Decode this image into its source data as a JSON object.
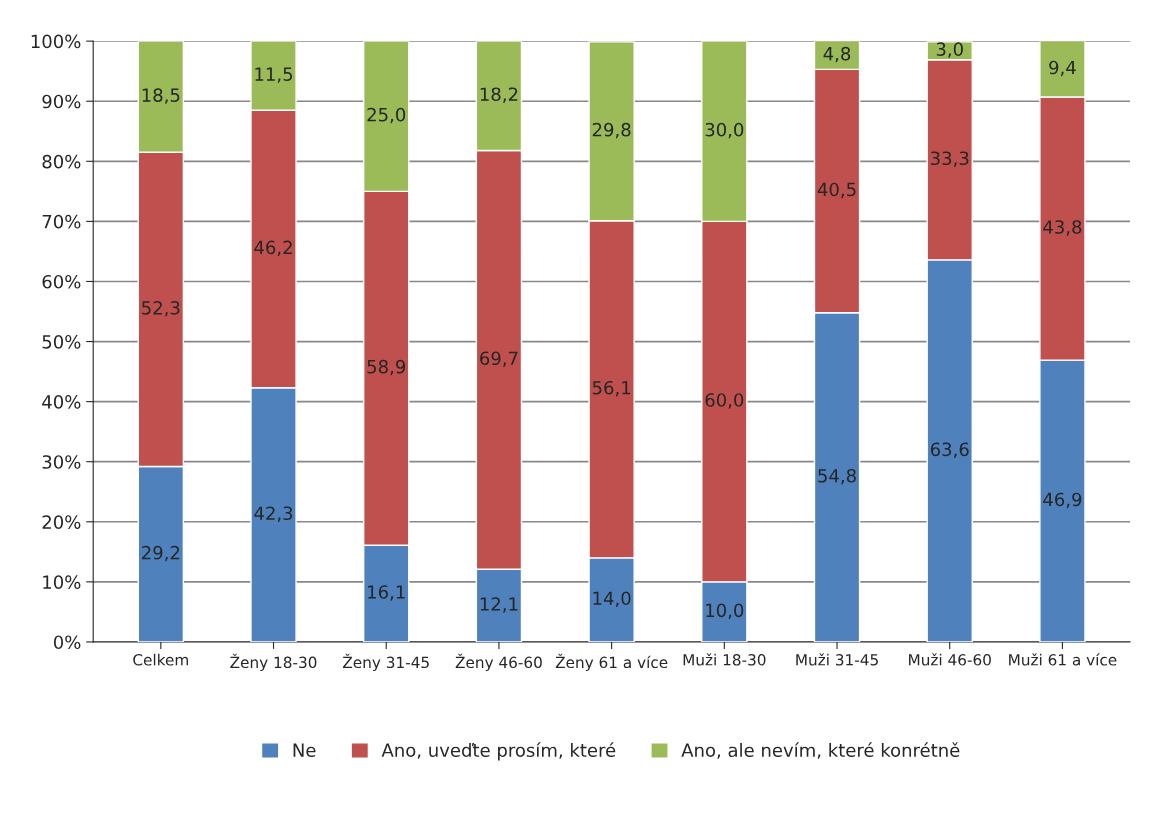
{
  "chart_data": {
    "type": "bar",
    "stacked": true,
    "categories": [
      "Celkem",
      "Ženy 18-30",
      "Ženy 31-45",
      "Ženy 46-60",
      "Ženy 61 a více",
      "Muži 18-30",
      "Muži 31-45",
      "Muži 46-60",
      "Muži 61 a více"
    ],
    "series": [
      {
        "name": "Ne",
        "color": "#4f81bd",
        "values": [
          29.2,
          42.3,
          16.1,
          12.1,
          14.0,
          10.0,
          54.8,
          63.6,
          46.9
        ],
        "value_labels": [
          "29,2",
          "42,3",
          "16,1",
          "12,1",
          "14,0",
          "10,0",
          "54,8",
          "63,6",
          "46,9"
        ]
      },
      {
        "name": "Ano, uveďte prosím, které",
        "color": "#c0504d",
        "values": [
          52.3,
          46.2,
          58.9,
          69.7,
          56.1,
          60.0,
          40.5,
          33.3,
          43.8
        ],
        "value_labels": [
          "52,3",
          "46,2",
          "58,9",
          "69,7",
          "56,1",
          "60,0",
          "40,5",
          "33,3",
          "43,8"
        ]
      },
      {
        "name": "Ano, ale nevím, které konrétně",
        "color": "#9bbb59",
        "values": [
          18.5,
          11.5,
          25.0,
          18.2,
          29.8,
          30.0,
          4.8,
          3.0,
          9.4
        ],
        "value_labels": [
          "18,5",
          "11,5",
          "25,0",
          "18,2",
          "29,8",
          "30,0",
          "4,8",
          "3,0",
          "9,4"
        ]
      }
    ],
    "ylim": [
      0,
      100
    ],
    "yticks": [
      {
        "value": 0,
        "label": "0%"
      },
      {
        "value": 10,
        "label": "10%"
      },
      {
        "value": 20,
        "label": "20%"
      },
      {
        "value": 30,
        "label": "30%"
      },
      {
        "value": 40,
        "label": "40%"
      },
      {
        "value": 50,
        "label": "50%"
      },
      {
        "value": 60,
        "label": "60%"
      },
      {
        "value": 70,
        "label": "70%"
      },
      {
        "value": 80,
        "label": "80%"
      },
      {
        "value": 90,
        "label": "90%"
      },
      {
        "value": 100,
        "label": "100%"
      }
    ],
    "grid": "y",
    "legend": "bottom"
  }
}
